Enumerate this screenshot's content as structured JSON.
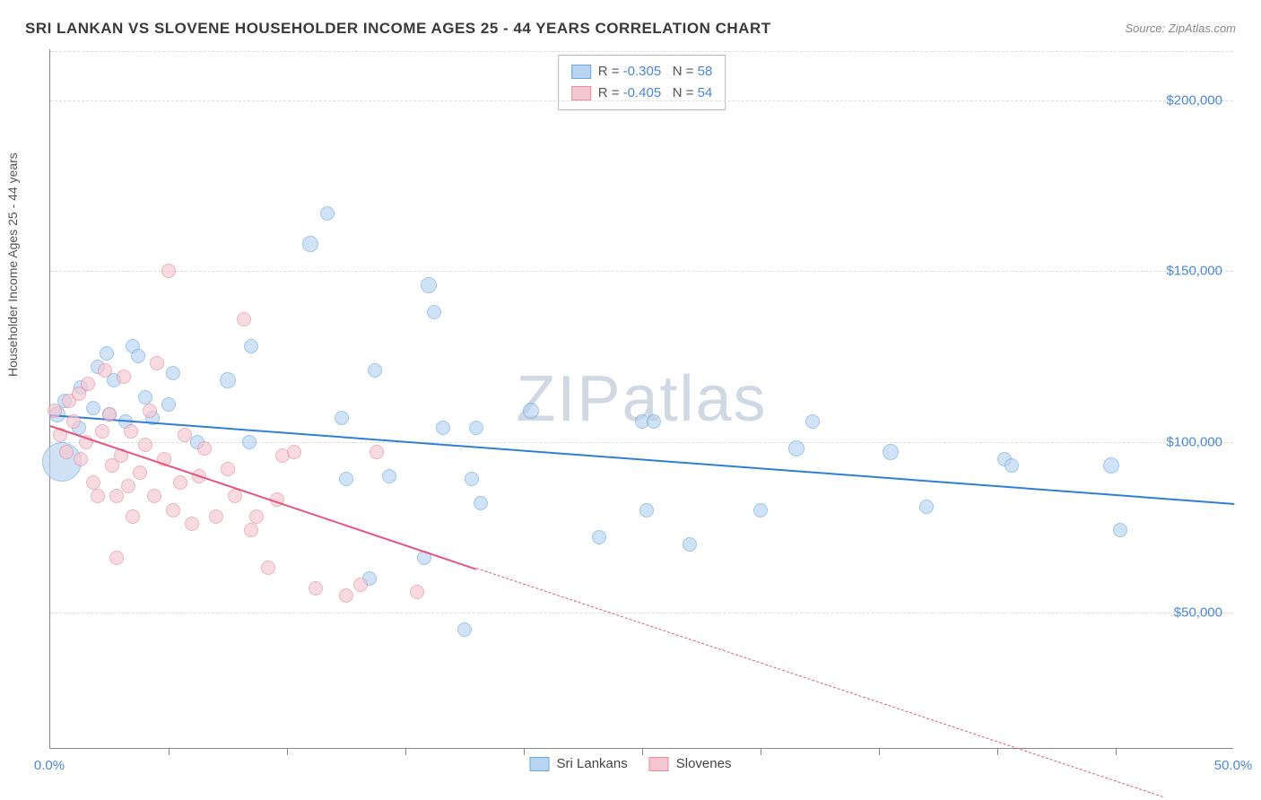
{
  "title": "SRI LANKAN VS SLOVENE HOUSEHOLDER INCOME AGES 25 - 44 YEARS CORRELATION CHART",
  "source": "Source: ZipAtlas.com",
  "watermark": "ZIPatlas",
  "ylabel": "Householder Income Ages 25 - 44 years",
  "chart": {
    "type": "scatter",
    "background_color": "#ffffff",
    "grid_color": "#dddddd",
    "grid_dashed": true,
    "x": {
      "min": 0,
      "max": 50,
      "tick_step": 5,
      "label_min": "0.0%",
      "label_max": "50.0%",
      "label_color": "#4a88d6",
      "fontsize": 15
    },
    "y": {
      "min": 10000,
      "max": 215000,
      "gridlines": [
        50000,
        100000,
        150000,
        200000
      ],
      "labels": [
        "$50,000",
        "$100,000",
        "$150,000",
        "$200,000"
      ],
      "label_color": "#4a88d6",
      "fontsize": 15
    },
    "series": [
      {
        "name": "Sri Lankans",
        "fill": "#b8d4f0",
        "stroke": "#6ea8e0",
        "opacity": 0.65,
        "marker": "circle",
        "trend": {
          "color": "#2f7ed8",
          "width": 2,
          "x1": 0,
          "y1": 108000,
          "x2_solid": 50,
          "y2_solid": 82000,
          "x2_total": 50,
          "y2_total": 82000
        },
        "correlation": {
          "R": "-0.305",
          "N": "58"
        },
        "points": [
          {
            "x": 0.3,
            "y": 108000,
            "r": 9
          },
          {
            "x": 0.5,
            "y": 94000,
            "r": 22
          },
          {
            "x": 0.6,
            "y": 112000,
            "r": 8
          },
          {
            "x": 1.2,
            "y": 104000,
            "r": 8
          },
          {
            "x": 1.3,
            "y": 116000,
            "r": 8
          },
          {
            "x": 1.8,
            "y": 110000,
            "r": 8
          },
          {
            "x": 2.0,
            "y": 122000,
            "r": 8
          },
          {
            "x": 2.4,
            "y": 126000,
            "r": 8
          },
          {
            "x": 2.5,
            "y": 108000,
            "r": 8
          },
          {
            "x": 2.7,
            "y": 118000,
            "r": 8
          },
          {
            "x": 3.2,
            "y": 106000,
            "r": 8
          },
          {
            "x": 3.5,
            "y": 128000,
            "r": 8
          },
          {
            "x": 3.7,
            "y": 125000,
            "r": 8
          },
          {
            "x": 4.0,
            "y": 113000,
            "r": 8
          },
          {
            "x": 4.3,
            "y": 107000,
            "r": 8
          },
          {
            "x": 5.0,
            "y": 111000,
            "r": 8
          },
          {
            "x": 5.2,
            "y": 120000,
            "r": 8
          },
          {
            "x": 6.2,
            "y": 100000,
            "r": 8
          },
          {
            "x": 7.5,
            "y": 118000,
            "r": 9
          },
          {
            "x": 8.4,
            "y": 100000,
            "r": 8
          },
          {
            "x": 8.5,
            "y": 128000,
            "r": 8
          },
          {
            "x": 11.0,
            "y": 158000,
            "r": 9
          },
          {
            "x": 11.7,
            "y": 167000,
            "r": 8
          },
          {
            "x": 12.3,
            "y": 107000,
            "r": 8
          },
          {
            "x": 12.5,
            "y": 89000,
            "r": 8
          },
          {
            "x": 13.7,
            "y": 121000,
            "r": 8
          },
          {
            "x": 13.5,
            "y": 60000,
            "r": 8
          },
          {
            "x": 14.3,
            "y": 90000,
            "r": 8
          },
          {
            "x": 15.8,
            "y": 66000,
            "r": 8
          },
          {
            "x": 16.0,
            "y": 146000,
            "r": 9
          },
          {
            "x": 16.2,
            "y": 138000,
            "r": 8
          },
          {
            "x": 16.6,
            "y": 104000,
            "r": 8
          },
          {
            "x": 17.5,
            "y": 45000,
            "r": 8
          },
          {
            "x": 17.8,
            "y": 89000,
            "r": 8
          },
          {
            "x": 18.0,
            "y": 104000,
            "r": 8
          },
          {
            "x": 18.2,
            "y": 82000,
            "r": 8
          },
          {
            "x": 20.3,
            "y": 109000,
            "r": 9
          },
          {
            "x": 23.2,
            "y": 72000,
            "r": 8
          },
          {
            "x": 25.0,
            "y": 106000,
            "r": 8
          },
          {
            "x": 25.2,
            "y": 80000,
            "r": 8
          },
          {
            "x": 25.5,
            "y": 106000,
            "r": 8
          },
          {
            "x": 27.0,
            "y": 70000,
            "r": 8
          },
          {
            "x": 30.0,
            "y": 80000,
            "r": 8
          },
          {
            "x": 31.5,
            "y": 98000,
            "r": 9
          },
          {
            "x": 32.2,
            "y": 106000,
            "r": 8
          },
          {
            "x": 35.5,
            "y": 97000,
            "r": 9
          },
          {
            "x": 37.0,
            "y": 81000,
            "r": 8
          },
          {
            "x": 40.3,
            "y": 95000,
            "r": 8
          },
          {
            "x": 40.6,
            "y": 93000,
            "r": 8
          },
          {
            "x": 44.8,
            "y": 93000,
            "r": 9
          },
          {
            "x": 45.2,
            "y": 74000,
            "r": 8
          }
        ]
      },
      {
        "name": "Slovenes",
        "fill": "#f5c7d2",
        "stroke": "#e88aa0",
        "opacity": 0.65,
        "marker": "circle",
        "trend": {
          "color": "#e75480",
          "width": 2,
          "x1": 0,
          "y1": 105000,
          "x2_solid": 18,
          "y2_solid": 63000,
          "x2_total": 47,
          "y2_total": -4000
        },
        "correlation": {
          "R": "-0.405",
          "N": "54"
        },
        "points": [
          {
            "x": 0.2,
            "y": 109000,
            "r": 8
          },
          {
            "x": 0.4,
            "y": 102000,
            "r": 8
          },
          {
            "x": 0.7,
            "y": 97000,
            "r": 8
          },
          {
            "x": 0.8,
            "y": 112000,
            "r": 8
          },
          {
            "x": 1.0,
            "y": 106000,
            "r": 8
          },
          {
            "x": 1.2,
            "y": 114000,
            "r": 8
          },
          {
            "x": 1.3,
            "y": 95000,
            "r": 8
          },
          {
            "x": 1.5,
            "y": 100000,
            "r": 8
          },
          {
            "x": 1.6,
            "y": 117000,
            "r": 8
          },
          {
            "x": 1.8,
            "y": 88000,
            "r": 8
          },
          {
            "x": 2.0,
            "y": 84000,
            "r": 8
          },
          {
            "x": 2.2,
            "y": 103000,
            "r": 8
          },
          {
            "x": 2.3,
            "y": 121000,
            "r": 8
          },
          {
            "x": 2.5,
            "y": 108000,
            "r": 8
          },
          {
            "x": 2.6,
            "y": 93000,
            "r": 8
          },
          {
            "x": 2.8,
            "y": 84000,
            "r": 8
          },
          {
            "x": 2.8,
            "y": 66000,
            "r": 8
          },
          {
            "x": 3.0,
            "y": 96000,
            "r": 8
          },
          {
            "x": 3.1,
            "y": 119000,
            "r": 8
          },
          {
            "x": 3.3,
            "y": 87000,
            "r": 8
          },
          {
            "x": 3.4,
            "y": 103000,
            "r": 8
          },
          {
            "x": 3.5,
            "y": 78000,
            "r": 8
          },
          {
            "x": 3.8,
            "y": 91000,
            "r": 8
          },
          {
            "x": 4.0,
            "y": 99000,
            "r": 8
          },
          {
            "x": 4.2,
            "y": 109000,
            "r": 8
          },
          {
            "x": 4.4,
            "y": 84000,
            "r": 8
          },
          {
            "x": 4.5,
            "y": 123000,
            "r": 8
          },
          {
            "x": 4.8,
            "y": 95000,
            "r": 8
          },
          {
            "x": 5.0,
            "y": 150000,
            "r": 8
          },
          {
            "x": 5.2,
            "y": 80000,
            "r": 8
          },
          {
            "x": 5.5,
            "y": 88000,
            "r": 8
          },
          {
            "x": 5.7,
            "y": 102000,
            "r": 8
          },
          {
            "x": 6.0,
            "y": 76000,
            "r": 8
          },
          {
            "x": 6.3,
            "y": 90000,
            "r": 8
          },
          {
            "x": 6.5,
            "y": 98000,
            "r": 8
          },
          {
            "x": 7.0,
            "y": 78000,
            "r": 8
          },
          {
            "x": 7.5,
            "y": 92000,
            "r": 8
          },
          {
            "x": 7.8,
            "y": 84000,
            "r": 8
          },
          {
            "x": 8.2,
            "y": 136000,
            "r": 8
          },
          {
            "x": 8.5,
            "y": 74000,
            "r": 8
          },
          {
            "x": 8.7,
            "y": 78000,
            "r": 8
          },
          {
            "x": 9.2,
            "y": 63000,
            "r": 8
          },
          {
            "x": 9.6,
            "y": 83000,
            "r": 8
          },
          {
            "x": 9.8,
            "y": 96000,
            "r": 8
          },
          {
            "x": 10.3,
            "y": 97000,
            "r": 8
          },
          {
            "x": 11.2,
            "y": 57000,
            "r": 8
          },
          {
            "x": 12.5,
            "y": 55000,
            "r": 8
          },
          {
            "x": 13.1,
            "y": 58000,
            "r": 8
          },
          {
            "x": 13.8,
            "y": 97000,
            "r": 8
          },
          {
            "x": 15.5,
            "y": 56000,
            "r": 8
          }
        ]
      }
    ],
    "correlation_box": {
      "border_color": "#bbbbbb",
      "bg": "#ffffff",
      "fontsize": 15,
      "label_color": "#555555",
      "value_color": "#4a88d6"
    },
    "bottom_legend": {
      "fontsize": 15,
      "text_color": "#444444"
    }
  }
}
